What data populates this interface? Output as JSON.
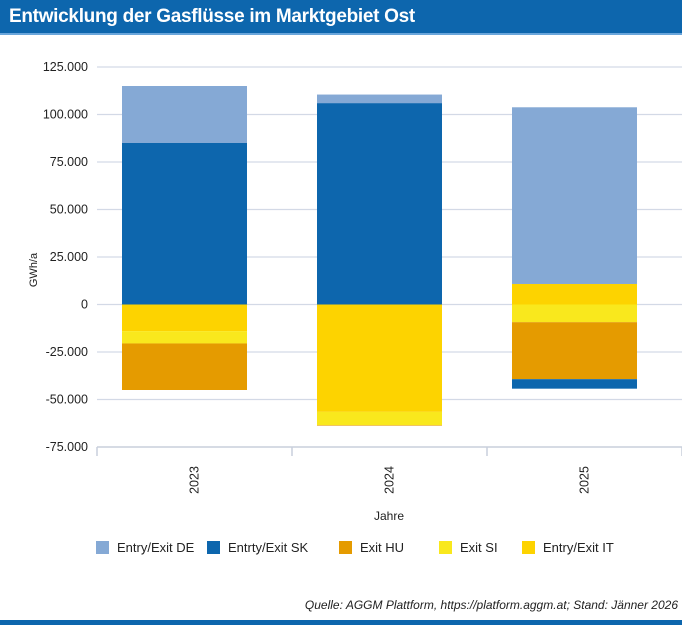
{
  "title": "Entwicklung der Gasflüsse im Marktgebiet Ost",
  "source": "Quelle: AGGM Plattform, https://platform.aggm.at; Stand: Jänner 2026",
  "chart_data": {
    "type": "bar",
    "stacked": true,
    "categories": [
      "2023",
      "2024",
      "2025"
    ],
    "xlabel": "Jahre",
    "ylabel": "GWh/a",
    "ylim": [
      -75000,
      125000
    ],
    "yticks": [
      125000,
      100000,
      75000,
      50000,
      25000,
      0,
      -25000,
      -50000,
      -75000
    ],
    "ytick_labels": [
      "125.000",
      "100.000",
      "75.000",
      "50.000",
      "25.000",
      "0",
      "-25.000",
      "-50.000",
      "-75.000"
    ],
    "grid": true,
    "legend": "bottom",
    "series": [
      {
        "name": "Entry/Exit DE",
        "color": "#85a9d5",
        "values": [
          30000,
          4500,
          93000
        ]
      },
      {
        "name": "Entrty/Exit SK",
        "color": "#0d66ad",
        "values": [
          85000,
          106000,
          -5000
        ]
      },
      {
        "name": "Exit HU",
        "color": "#e59b00",
        "values": [
          -24500,
          -300,
          -30000
        ]
      },
      {
        "name": "Exit SI",
        "color": "#f9e81d",
        "values": [
          -6500,
          -7000,
          -9300
        ]
      },
      {
        "name": "Entry/Exit IT",
        "color": "#fdd300",
        "values": [
          -14000,
          -56500,
          10800
        ]
      }
    ]
  }
}
